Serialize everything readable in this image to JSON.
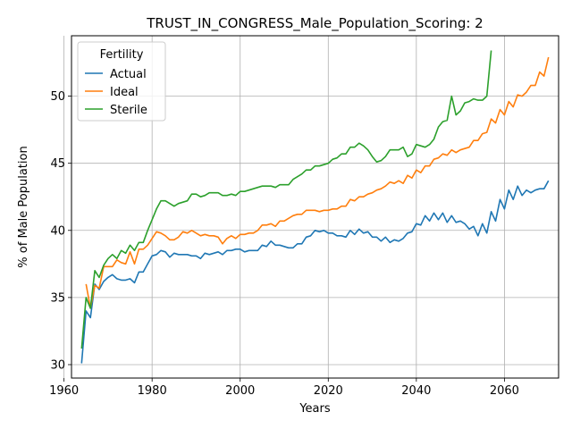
{
  "chart_data": {
    "type": "line",
    "title": "TRUST_IN_CONGRESS_Male_Population_Scoring: 2",
    "xlabel": "Years",
    "ylabel": "% of Male Population",
    "xlim": [
      1961.7,
      2072.3
    ],
    "ylim": [
      29.0,
      54.5
    ],
    "xticks": [
      1960,
      1980,
      2000,
      2020,
      2040,
      2060
    ],
    "yticks": [
      30,
      35,
      40,
      45,
      50
    ],
    "grid": true,
    "legend": {
      "title": "Fertility",
      "placement": "upper-left"
    },
    "colors": {
      "Actual": "#1f77b4",
      "Ideal": "#ff7f0e",
      "Sterile": "#2ca02c"
    },
    "series": [
      {
        "name": "Actual",
        "x": [
          1964,
          1965,
          1966,
          1967,
          1968,
          1969,
          1970,
          1971,
          1972,
          1973,
          1974,
          1975,
          1976,
          1977,
          1978,
          1979,
          1980,
          1981,
          1982,
          1983,
          1984,
          1985,
          1986,
          1987,
          1988,
          1989,
          1990,
          1991,
          1992,
          1993,
          1994,
          1995,
          1996,
          1997,
          1998,
          1999,
          2000,
          2001,
          2002,
          2003,
          2004,
          2005,
          2006,
          2007,
          2008,
          2009,
          2010,
          2011,
          2012,
          2013,
          2014,
          2015,
          2016,
          2017,
          2018,
          2019,
          2020,
          2021,
          2022,
          2023,
          2024,
          2025,
          2026,
          2027,
          2028,
          2029,
          2030,
          2031,
          2032,
          2033,
          2034,
          2035,
          2036,
          2037,
          2038,
          2039,
          2040,
          2041,
          2042,
          2043,
          2044,
          2045,
          2046,
          2047,
          2048,
          2049,
          2050,
          2051,
          2052,
          2053,
          2054,
          2055,
          2056,
          2057,
          2058,
          2059,
          2060,
          2061,
          2062,
          2063,
          2064,
          2065,
          2066,
          2067,
          2068,
          2069,
          2070
        ],
        "y": [
          30.1,
          34.0,
          33.5,
          36.0,
          35.6,
          36.2,
          36.5,
          36.7,
          36.4,
          36.3,
          36.3,
          36.4,
          36.1,
          36.9,
          36.9,
          37.5,
          38.1,
          38.2,
          38.5,
          38.4,
          38.0,
          38.3,
          38.2,
          38.2,
          38.2,
          38.1,
          38.1,
          37.9,
          38.3,
          38.2,
          38.3,
          38.4,
          38.2,
          38.5,
          38.5,
          38.6,
          38.6,
          38.4,
          38.5,
          38.5,
          38.5,
          38.9,
          38.8,
          39.2,
          38.9,
          38.9,
          38.8,
          38.7,
          38.7,
          39.0,
          39.0,
          39.5,
          39.6,
          40.0,
          39.9,
          40.0,
          39.8,
          39.8,
          39.6,
          39.6,
          39.5,
          40.0,
          39.7,
          40.1,
          39.8,
          39.9,
          39.5,
          39.5,
          39.2,
          39.5,
          39.1,
          39.3,
          39.2,
          39.4,
          39.8,
          39.9,
          40.5,
          40.4,
          41.1,
          40.7,
          41.3,
          40.8,
          41.3,
          40.6,
          41.1,
          40.6,
          40.7,
          40.5,
          40.1,
          40.3,
          39.6,
          40.5,
          39.8,
          41.4,
          40.7,
          42.3,
          41.6,
          43.0,
          42.3,
          43.3,
          42.6,
          43.0,
          42.8,
          43.0,
          43.1,
          43.1,
          43.7
        ]
      },
      {
        "name": "Ideal",
        "x": [
          1965,
          1966,
          1967,
          1968,
          1969,
          1970,
          1971,
          1972,
          1973,
          1974,
          1975,
          1976,
          1977,
          1978,
          1979,
          1980,
          1981,
          1982,
          1983,
          1984,
          1985,
          1986,
          1987,
          1988,
          1989,
          1990,
          1991,
          1992,
          1993,
          1994,
          1995,
          1996,
          1997,
          1998,
          1999,
          2000,
          2001,
          2002,
          2003,
          2004,
          2005,
          2006,
          2007,
          2008,
          2009,
          2010,
          2011,
          2012,
          2013,
          2014,
          2015,
          2016,
          2017,
          2018,
          2019,
          2020,
          2021,
          2022,
          2023,
          2024,
          2025,
          2026,
          2027,
          2028,
          2029,
          2030,
          2031,
          2032,
          2033,
          2034,
          2035,
          2036,
          2037,
          2038,
          2039,
          2040,
          2041,
          2042,
          2043,
          2044,
          2045,
          2046,
          2047,
          2048,
          2049,
          2050,
          2051,
          2052,
          2053,
          2054,
          2055,
          2056,
          2057,
          2058,
          2059,
          2060,
          2061,
          2062,
          2063,
          2064,
          2065,
          2066,
          2067,
          2068,
          2069,
          2070
        ],
        "y": [
          36.0,
          34.2,
          35.9,
          35.7,
          37.3,
          37.3,
          37.3,
          37.8,
          37.6,
          37.5,
          38.4,
          37.5,
          38.6,
          38.6,
          38.9,
          39.4,
          39.9,
          39.8,
          39.6,
          39.3,
          39.3,
          39.5,
          39.9,
          39.8,
          40.0,
          39.8,
          39.6,
          39.7,
          39.6,
          39.6,
          39.5,
          39.0,
          39.4,
          39.6,
          39.4,
          39.7,
          39.7,
          39.8,
          39.8,
          40.0,
          40.4,
          40.4,
          40.5,
          40.3,
          40.7,
          40.7,
          40.9,
          41.1,
          41.2,
          41.2,
          41.5,
          41.5,
          41.5,
          41.4,
          41.5,
          41.5,
          41.6,
          41.6,
          41.8,
          41.8,
          42.3,
          42.2,
          42.5,
          42.5,
          42.7,
          42.8,
          43.0,
          43.1,
          43.3,
          43.6,
          43.5,
          43.7,
          43.5,
          44.1,
          43.9,
          44.5,
          44.3,
          44.8,
          44.8,
          45.3,
          45.4,
          45.7,
          45.6,
          46.0,
          45.8,
          46.0,
          46.1,
          46.2,
          46.7,
          46.7,
          47.2,
          47.3,
          48.3,
          48.0,
          49.0,
          48.6,
          49.6,
          49.2,
          50.1,
          50.0,
          50.3,
          50.8,
          50.8,
          51.8,
          51.5,
          52.9
        ]
      },
      {
        "name": "Sterile",
        "x": [
          1964,
          1965,
          1966,
          1967,
          1968,
          1969,
          1970,
          1971,
          1972,
          1973,
          1974,
          1975,
          1976,
          1977,
          1978,
          1979,
          1980,
          1981,
          1982,
          1983,
          1984,
          1985,
          1986,
          1987,
          1988,
          1989,
          1990,
          1991,
          1992,
          1993,
          1994,
          1995,
          1996,
          1997,
          1998,
          1999,
          2000,
          2001,
          2002,
          2003,
          2004,
          2005,
          2006,
          2007,
          2008,
          2009,
          2010,
          2011,
          2012,
          2013,
          2014,
          2015,
          2016,
          2017,
          2018,
          2019,
          2020,
          2021,
          2022,
          2023,
          2024,
          2025,
          2026,
          2027,
          2028,
          2029,
          2030,
          2031,
          2032,
          2033,
          2034,
          2035,
          2036,
          2037,
          2038,
          2039,
          2040,
          2041,
          2042,
          2043,
          2044,
          2045,
          2046,
          2047,
          2048,
          2049,
          2050,
          2051,
          2052,
          2053,
          2054,
          2055,
          2056,
          2057
        ],
        "y": [
          31.2,
          35.0,
          34.2,
          37.0,
          36.5,
          37.4,
          37.9,
          38.2,
          37.9,
          38.5,
          38.3,
          38.9,
          38.5,
          39.1,
          39.1,
          40.0,
          40.8,
          41.6,
          42.2,
          42.2,
          42.0,
          41.8,
          42.0,
          42.1,
          42.2,
          42.7,
          42.7,
          42.5,
          42.6,
          42.8,
          42.8,
          42.8,
          42.6,
          42.6,
          42.7,
          42.6,
          42.9,
          42.9,
          43.0,
          43.1,
          43.2,
          43.3,
          43.3,
          43.3,
          43.2,
          43.4,
          43.4,
          43.4,
          43.8,
          44.0,
          44.2,
          44.5,
          44.5,
          44.8,
          44.8,
          44.9,
          45.0,
          45.3,
          45.4,
          45.7,
          45.7,
          46.2,
          46.2,
          46.5,
          46.3,
          46.0,
          45.5,
          45.1,
          45.2,
          45.5,
          46.0,
          46.0,
          46.0,
          46.2,
          45.5,
          45.7,
          46.4,
          46.3,
          46.2,
          46.4,
          46.8,
          47.7,
          48.1,
          48.2,
          50.0,
          48.6,
          48.9,
          49.5,
          49.6,
          49.8,
          49.7,
          49.7,
          50.0,
          53.4
        ]
      }
    ]
  }
}
